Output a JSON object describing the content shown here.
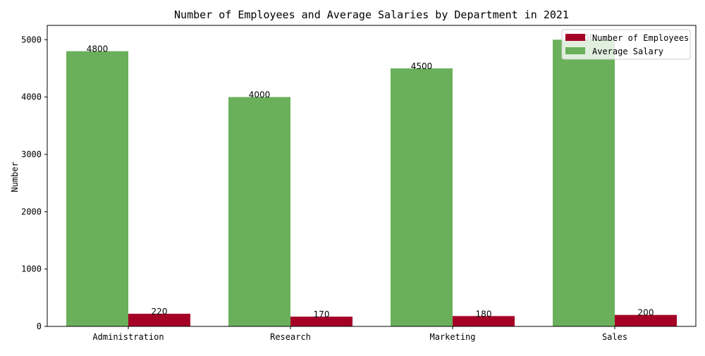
{
  "chart_data": {
    "type": "bar",
    "title": "Number of Employees and Average Salaries by Department in 2021",
    "xlabel": "",
    "ylabel": "Number",
    "categories": [
      "Administration",
      "Research",
      "Marketing",
      "Sales"
    ],
    "series": [
      {
        "name": "Number of Employees",
        "values": [
          220,
          170,
          180,
          200
        ],
        "color": "#a50026"
      },
      {
        "name": "Average Salary",
        "values": [
          4800,
          4000,
          4500,
          5000
        ],
        "color": "#6ab05b"
      }
    ],
    "ylim": [
      0,
      5250
    ],
    "yticks": [
      0,
      1000,
      2000,
      3000,
      4000,
      5000
    ],
    "grid": false,
    "legend_position": "top-right"
  }
}
